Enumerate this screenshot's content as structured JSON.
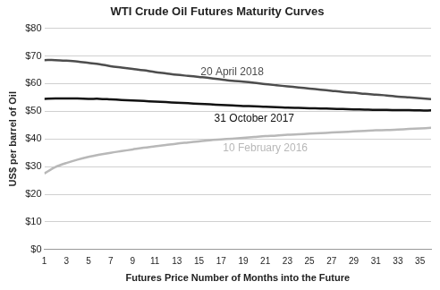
{
  "chart_data": {
    "type": "line",
    "title": "WTI Crude Oil Futures Maturity Curves",
    "x_label": "Futures Price Number of Months into the Future",
    "y_label": "US$ per barrel of Oil",
    "x": [
      1,
      2,
      3,
      4,
      5,
      6,
      7,
      8,
      9,
      10,
      11,
      12,
      13,
      14,
      15,
      16,
      17,
      18,
      19,
      20,
      21,
      22,
      23,
      24,
      25,
      26,
      27,
      28,
      29,
      30,
      31,
      32,
      33,
      34,
      35,
      36
    ],
    "xlim": [
      1,
      36
    ],
    "xticks": [
      1,
      3,
      5,
      7,
      9,
      11,
      13,
      15,
      17,
      19,
      21,
      23,
      25,
      27,
      29,
      31,
      33,
      35
    ],
    "ylim": [
      0,
      80
    ],
    "yticks": [
      {
        "value": 0,
        "label": "$0"
      },
      {
        "value": 10,
        "label": "$10"
      },
      {
        "value": 20,
        "label": "$20"
      },
      {
        "value": 30,
        "label": "$30"
      },
      {
        "value": 40,
        "label": "$40"
      },
      {
        "value": 50,
        "label": "$50"
      },
      {
        "value": 60,
        "label": "$60"
      },
      {
        "value": 70,
        "label": "$70"
      },
      {
        "value": 80,
        "label": "$80"
      }
    ],
    "grid": true,
    "series": [
      {
        "name": "20 April 2018",
        "color": "#4d4d4d",
        "values": [
          68.5,
          68.5,
          68.3,
          68,
          67.5,
          67,
          66.3,
          65.8,
          65.3,
          64.8,
          64.2,
          63.7,
          63.2,
          62.8,
          62.4,
          62,
          61.5,
          61,
          60.7,
          60.3,
          59.8,
          59.4,
          59,
          58.6,
          58.2,
          57.8,
          57.4,
          57,
          56.7,
          56.3,
          56,
          55.7,
          55.3,
          55,
          54.7,
          54.4
        ]
      },
      {
        "name": "31 October 2017",
        "color": "#111111",
        "values": [
          54.5,
          54.6,
          54.6,
          54.6,
          54.5,
          54.5,
          54.3,
          54.1,
          53.9,
          53.7,
          53.5,
          53.3,
          53.1,
          52.9,
          52.7,
          52.5,
          52.3,
          52.1,
          51.9,
          51.8,
          51.6,
          51.5,
          51.3,
          51.2,
          51.1,
          51,
          50.9,
          50.8,
          50.7,
          50.6,
          50.5,
          50.5,
          50.4,
          50.4,
          50.3,
          50.3
        ]
      },
      {
        "name": "10 February 2016",
        "color": "#b8b8b8",
        "values": [
          27.5,
          29.8,
          31.3,
          32.5,
          33.5,
          34.3,
          35,
          35.6,
          36.2,
          36.8,
          37.3,
          37.8,
          38.3,
          38.7,
          39.1,
          39.5,
          39.8,
          40.1,
          40.4,
          40.7,
          41,
          41.2,
          41.5,
          41.7,
          41.9,
          42.1,
          42.3,
          42.5,
          42.7,
          42.9,
          43.1,
          43.2,
          43.4,
          43.6,
          43.8,
          44
        ]
      }
    ]
  }
}
